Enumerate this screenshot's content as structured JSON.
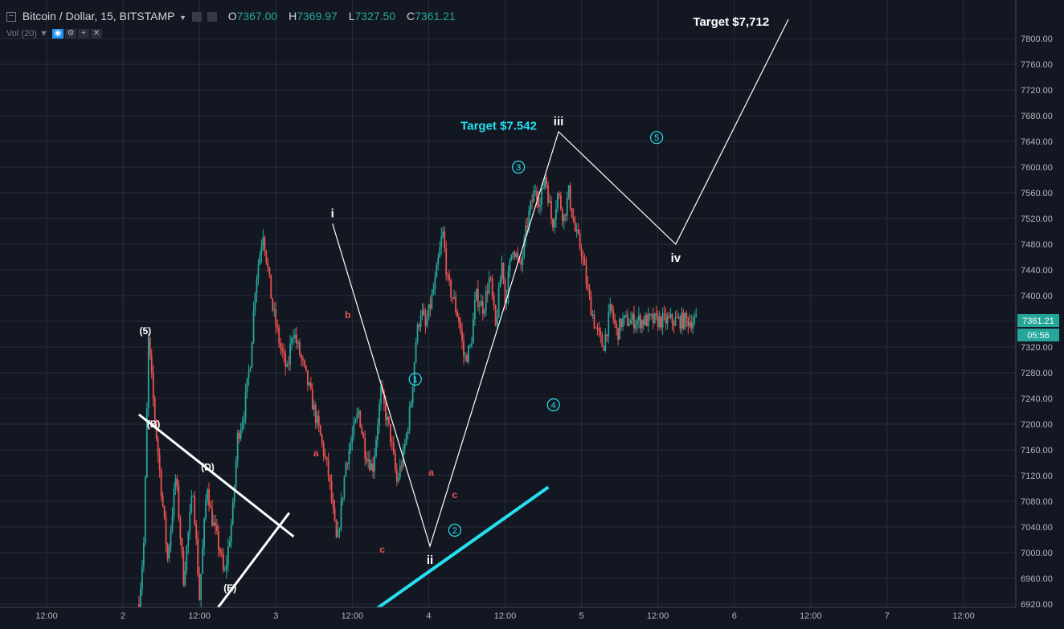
{
  "header": {
    "symbol": "Bitcoin / Dollar, 15, BITSTAMP",
    "open_label": "O",
    "open": "7367.00",
    "high_label": "H",
    "high": "7369.97",
    "low_label": "L",
    "low": "7327.50",
    "close_label": "C",
    "close": "7361.21",
    "volume_label": "Vol (20)"
  },
  "colors": {
    "background": "#131722",
    "grid": "#2a2e39",
    "up": "#26a69a",
    "down": "#ef5350",
    "cyan": "#26e0f0",
    "white": "#ffffff",
    "price_badge": "#26a69a"
  },
  "price_axis": {
    "current_price": "7361.21",
    "countdown": "05:56"
  },
  "chart_data": {
    "type": "candlestick",
    "symbol": "Bitcoin / Dollar",
    "interval": "15",
    "exchange": "BITSTAMP",
    "ylim": [
      6900,
      7820
    ],
    "y_ticks": [
      6920,
      6960,
      7000,
      7040,
      7080,
      7120,
      7160,
      7200,
      7240,
      7280,
      7320,
      7360,
      7400,
      7440,
      7480,
      7520,
      7560,
      7600,
      7640,
      7680,
      7720,
      7760,
      7800
    ],
    "x_tick_labels": [
      "12:00",
      "2",
      "12:00",
      "3",
      "12:00",
      "4",
      "12:00",
      "5",
      "12:00",
      "6",
      "12:00",
      "7",
      "12:00"
    ],
    "x_tick_hours": [
      12,
      24,
      36,
      48,
      60,
      72,
      84,
      96,
      108,
      120,
      132,
      144,
      156
    ],
    "price_path_hours": [
      26.5,
      27.3,
      28.0,
      28.9,
      30.0,
      31.0,
      32.3,
      33.5,
      35.0,
      36.0,
      37.2,
      37.8,
      39.3,
      39.9,
      41.2,
      42.0,
      43.0,
      44.0,
      44.8,
      46.0,
      47.5,
      48.7,
      49.8,
      50.6,
      52.0,
      53.1,
      55.0,
      56.3,
      57.6,
      59.0,
      61.0,
      62.0,
      63.2,
      64.5,
      66.0,
      67.0,
      68.0,
      69.2,
      70.0,
      70.8,
      71.5,
      73.0,
      74.2,
      75.0,
      76.0,
      76.8,
      77.6,
      78.6,
      79.4,
      80.6,
      81.6,
      82.5,
      83.6,
      84.0,
      85.2,
      86.4,
      87.6,
      88.8,
      89.5,
      90.3,
      91.4,
      92.3,
      93.2,
      94.0,
      95.0,
      96.0,
      97.1,
      98.2,
      99.4,
      100.6,
      101.6,
      102.3,
      103.4,
      104.7,
      105.8,
      106.8,
      108.0,
      108.8,
      109.8,
      110.8,
      111.6,
      112.4,
      113.4,
      114.0
    ],
    "price_path": [
      6920,
      7020,
      7330,
      7220,
      7100,
      6990,
      7120,
      6960,
      7100,
      6930,
      7110,
      7060,
      7000,
      6960,
      7060,
      7180,
      7220,
      7300,
      7420,
      7500,
      7380,
      7320,
      7280,
      7350,
      7300,
      7260,
      7180,
      7120,
      7010,
      7140,
      7220,
      7160,
      7130,
      7250,
      7180,
      7110,
      7150,
      7230,
      7330,
      7380,
      7350,
      7420,
      7500,
      7420,
      7390,
      7360,
      7300,
      7320,
      7400,
      7380,
      7430,
      7350,
      7460,
      7390,
      7480,
      7440,
      7520,
      7570,
      7540,
      7590,
      7510,
      7560,
      7520,
      7560,
      7500,
      7470,
      7400,
      7350,
      7320,
      7380,
      7340,
      7360,
      7361,
      7361,
      7361,
      7361,
      7361,
      7361,
      7361,
      7361,
      7361,
      7361,
      7361,
      7361
    ],
    "elliott_path": {
      "hours": [
        56.9,
        72.2,
        92.4,
        110.8,
        128.5
      ],
      "prices": [
        7512,
        7010,
        7655,
        7480,
        7830
      ],
      "labels": [
        "i",
        "ii",
        "iii",
        "iv",
        ""
      ]
    },
    "annotations": [
      {
        "text": "Target $7,712",
        "color": "#ffffff",
        "hour": 119.5,
        "price": 7820
      },
      {
        "text": "Target $7.542",
        "color": "#26e0f0",
        "hour": 83.0,
        "price": 7658
      },
      {
        "text": "(5)",
        "color": "#ffffff",
        "hour": 27.5,
        "price": 7340
      },
      {
        "text": "(B)",
        "color": "#ffffff",
        "hour": 28.8,
        "price": 7195
      },
      {
        "text": "(D)",
        "color": "#ffffff",
        "hour": 37.3,
        "price": 7128
      },
      {
        "text": "(E)",
        "color": "#ffffff",
        "hour": 40.8,
        "price": 6940
      },
      {
        "text": "b",
        "color": "#ef5350",
        "hour": 59.3,
        "price": 7365
      },
      {
        "text": "a",
        "color": "#ef5350",
        "hour": 54.3,
        "price": 7150
      },
      {
        "text": "c",
        "color": "#ef5350",
        "hour": 64.7,
        "price": 7000
      },
      {
        "text": "a",
        "color": "#ef5350",
        "hour": 72.4,
        "price": 7120
      },
      {
        "text": "c",
        "color": "#ef5350",
        "hour": 76.1,
        "price": 7085
      }
    ],
    "circled_labels": [
      {
        "text": "1",
        "hour": 69.9,
        "price": 7270
      },
      {
        "text": "2",
        "hour": 76.1,
        "price": 7035
      },
      {
        "text": "3",
        "hour": 86.1,
        "price": 7600
      },
      {
        "text": "4",
        "hour": 91.6,
        "price": 7230
      },
      {
        "text": "5",
        "hour": 107.8,
        "price": 7646
      }
    ],
    "trendlines": [
      {
        "color": "#ffffff",
        "hours": [
          26.5,
          50.8
        ],
        "prices": [
          7215,
          7025
        ]
      },
      {
        "color": "#ffffff",
        "hours": [
          37.8,
          50.1
        ],
        "prices": [
          6900,
          7062
        ]
      },
      {
        "color": "#26e0f0",
        "hours": [
          62.0,
          90.8
        ],
        "prices": [
          6900,
          7102
        ]
      }
    ]
  }
}
